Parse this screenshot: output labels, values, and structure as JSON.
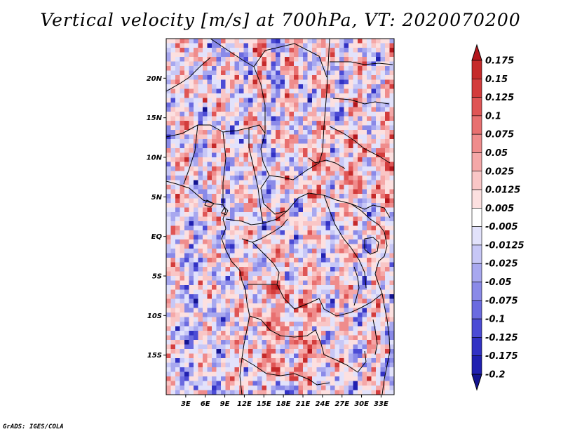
{
  "title": "Vertical velocity [m/s] at 700hPa, VT: 2020070200",
  "credit": "GrADS: IGES/COLA",
  "chart_data": {
    "type": "heatmap",
    "title": "Vertical velocity [m/s] at 700hPa, VT: 2020070200",
    "variable": "Vertical velocity",
    "units": "m/s",
    "level": "700hPa",
    "valid_time": "2020070200",
    "x_axis": {
      "ticks": [
        {
          "v": 3,
          "label": "3E"
        },
        {
          "v": 6,
          "label": "6E"
        },
        {
          "v": 9,
          "label": "9E"
        },
        {
          "v": 12,
          "label": "12E"
        },
        {
          "v": 15,
          "label": "15E"
        },
        {
          "v": 18,
          "label": "18E"
        },
        {
          "v": 21,
          "label": "21E"
        },
        {
          "v": 24,
          "label": "24E"
        },
        {
          "v": 27,
          "label": "27E"
        },
        {
          "v": 30,
          "label": "30E"
        },
        {
          "v": 33,
          "label": "33E"
        }
      ],
      "range": [
        0,
        35
      ]
    },
    "y_axis": {
      "ticks": [
        {
          "v": 20,
          "label": "20N"
        },
        {
          "v": 15,
          "label": "15N"
        },
        {
          "v": 10,
          "label": "10N"
        },
        {
          "v": 5,
          "label": "5N"
        },
        {
          "v": 0,
          "label": "EQ"
        },
        {
          "v": -5,
          "label": "5S"
        },
        {
          "v": -10,
          "label": "10S"
        },
        {
          "v": -15,
          "label": "15S"
        }
      ],
      "range": [
        -20,
        25
      ]
    },
    "colorbar": {
      "labels": [
        "0.175",
        "0.15",
        "0.125",
        "0.1",
        "0.075",
        "0.05",
        "0.025",
        "0.0125",
        "0.005",
        "-0.005",
        "-0.0125",
        "-0.025",
        "-0.05",
        "-0.075",
        "-0.1",
        "-0.125",
        "-0.175",
        "-0.2"
      ],
      "colors": [
        "#b3161c",
        "#c52a2a",
        "#d33c3c",
        "#df5555",
        "#e87070",
        "#ef8c8c",
        "#f5a8a8",
        "#f9c6c6",
        "#fce0e0",
        "#ffffff",
        "#e2e2fb",
        "#c7c7f6",
        "#a8a8ef",
        "#8a8ae8",
        "#6b6be0",
        "#4c4cd5",
        "#3232c4",
        "#2020b0",
        "#141490"
      ]
    },
    "grid": false
  }
}
